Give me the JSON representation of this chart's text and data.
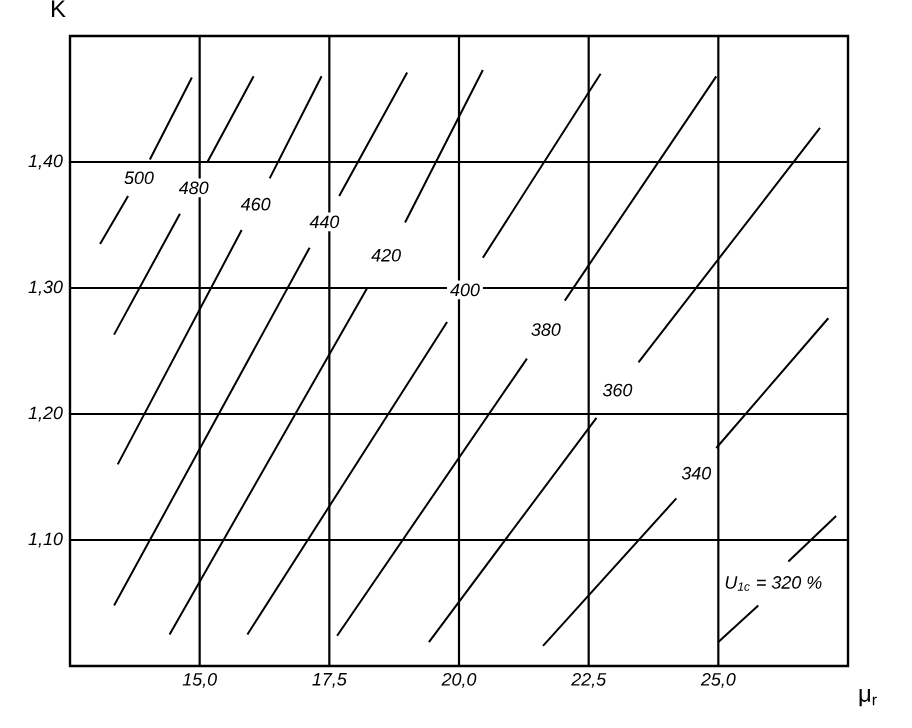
{
  "chart_data": {
    "type": "line",
    "xlabel": "μ$_{r}$",
    "ylabel": "K",
    "xlim": [
      12.5,
      27.5
    ],
    "ylim": [
      1.0,
      1.5
    ],
    "xticks": [
      {
        "value": 15,
        "label": "15,0"
      },
      {
        "value": 17.5,
        "label": "17,5"
      },
      {
        "value": 20,
        "label": "20,0"
      },
      {
        "value": 22.5,
        "label": "22,5"
      },
      {
        "value": 25,
        "label": "25,0"
      }
    ],
    "yticks": [
      {
        "value": 1.1,
        "label": "1,10"
      },
      {
        "value": 1.2,
        "label": "1,20"
      },
      {
        "value": 1.3,
        "label": "1,30"
      },
      {
        "value": 1.4,
        "label": "1,40"
      }
    ],
    "grid": true,
    "marker": "none",
    "line_style": "solid",
    "series": [
      {
        "name": "500",
        "color": "#000000",
        "x": [
          14.85,
          14.04,
          null,
          13.62,
          13.08
        ],
        "values": [
          1.467,
          1.402,
          null,
          1.373,
          1.335
        ]
      },
      {
        "name": "480",
        "color": "#000000",
        "x": [
          16.04,
          15.15,
          null,
          14.62,
          13.35
        ],
        "values": [
          1.468,
          1.4,
          null,
          1.359,
          1.263
        ]
      },
      {
        "name": "460",
        "color": "#000000",
        "x": [
          17.35,
          16.35,
          null,
          15.81,
          13.42
        ],
        "values": [
          1.468,
          1.387,
          null,
          1.346,
          1.16
        ]
      },
      {
        "name": "440",
        "color": "#000000",
        "x": [
          19.0,
          17.69,
          null,
          17.12,
          13.35
        ],
        "values": [
          1.471,
          1.373,
          null,
          1.332,
          1.048
        ]
      },
      {
        "name": "420",
        "color": "#000000",
        "x": [
          20.46,
          18.96,
          null,
          18.23,
          14.42
        ],
        "values": [
          1.473,
          1.352,
          null,
          1.3,
          1.025
        ]
      },
      {
        "name": "400",
        "color": "#000000",
        "x": [
          22.73,
          20.46,
          null,
          19.77,
          15.92
        ],
        "values": [
          1.47,
          1.324,
          null,
          1.273,
          1.025
        ]
      },
      {
        "name": "380",
        "color": "#000000",
        "x": [
          24.96,
          22.04,
          null,
          21.31,
          17.65
        ],
        "values": [
          1.468,
          1.29,
          null,
          1.244,
          1.024
        ]
      },
      {
        "name": "360",
        "color": "#000000",
        "x": [
          26.96,
          23.46,
          null,
          22.65,
          19.42
        ],
        "values": [
          1.427,
          1.241,
          null,
          1.197,
          1.019
        ]
      },
      {
        "name": "340",
        "color": "#000000",
        "x": [
          27.12,
          24.96,
          null,
          24.19,
          21.62
        ],
        "values": [
          1.276,
          1.173,
          null,
          1.133,
          1.016
        ]
      },
      {
        "name": "U$_{1c}$ = 320 %",
        "color": "#000000",
        "x": [
          27.27,
          26.35,
          null,
          25.77,
          25.0
        ],
        "values": [
          1.119,
          1.083,
          null,
          1.048,
          1.019
        ]
      }
    ]
  }
}
